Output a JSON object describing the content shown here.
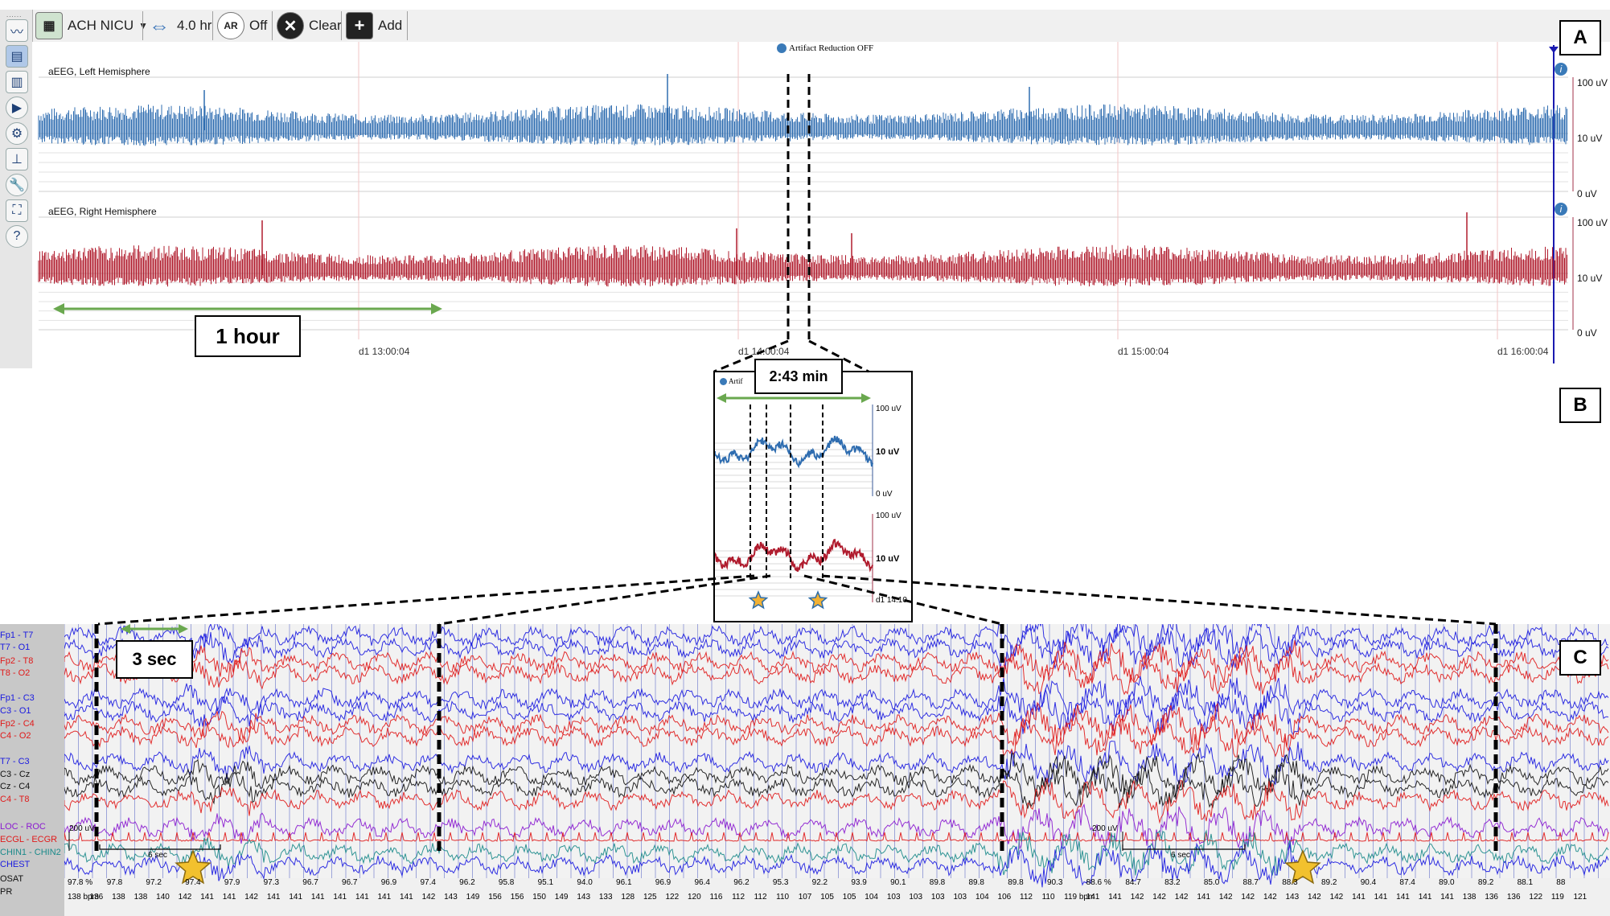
{
  "toolbar": {
    "montage_label": "ACH NICU",
    "timebase_label": "4.0 hr",
    "artifact_icon": "AR",
    "artifact_label": "Off",
    "clear_label": "Clear",
    "add_label": "Add"
  },
  "sidebar": {
    "icons": [
      "waveform-icon",
      "aeeg-trend-icon",
      "spectrum-icon",
      "play-icon",
      "gear-icon",
      "trend-icon",
      "wrench-icon",
      "fit-screen-icon",
      "help-icon"
    ]
  },
  "panel_a": {
    "letter": "A",
    "artifact_status": "Artifact Reduction OFF",
    "left_label": "aEEG, Left Hemisphere",
    "right_label": "aEEG, Right Hemisphere",
    "scale": [
      "100 uV",
      "10 uV",
      "0 uV"
    ],
    "time_labels": [
      "d1 13:00:04",
      "d1 14:00:04",
      "d1 15:00:04",
      "d1 16:00:04"
    ],
    "duration_label": "1 hour",
    "colors": {
      "left": "#2f6db0",
      "right": "#b01c2e"
    }
  },
  "panel_b": {
    "letter": "B",
    "duration_label": "2:43 min",
    "header_text": "Artif",
    "scale": [
      "100 uV",
      "10 uV",
      "0 uV",
      "100 uV",
      "10 uV",
      "0 uV"
    ],
    "time_label": "d1 14:10"
  },
  "panel_c": {
    "letter": "C",
    "duration_label": "3 sec",
    "channels": [
      {
        "name": "Fp1 - T7",
        "color": "#1a1ae0"
      },
      {
        "name": "T7 - O1",
        "color": "#1a1ae0"
      },
      {
        "name": "Fp2 - T8",
        "color": "#e01a1a"
      },
      {
        "name": "T8 - O2",
        "color": "#e01a1a"
      },
      {
        "name": "Fp1 - C3",
        "color": "#1a1ae0"
      },
      {
        "name": "C3 - O1",
        "color": "#1a1ae0"
      },
      {
        "name": "Fp2 - C4",
        "color": "#e01a1a"
      },
      {
        "name": "C4 - O2",
        "color": "#e01a1a"
      },
      {
        "name": "T7 - C3",
        "color": "#1a1ae0"
      },
      {
        "name": "C3 - Cz",
        "color": "#111111"
      },
      {
        "name": "Cz - C4",
        "color": "#111111"
      },
      {
        "name": "C4 - T8",
        "color": "#e01a1a"
      },
      {
        "name": "LOC - ROC",
        "color": "#8a1ad0"
      },
      {
        "name": "ECGL - ECGR",
        "color": "#e01a1a"
      },
      {
        "name": "CHIN1 - CHIN2",
        "color": "#1a8a8a"
      },
      {
        "name": "CHEST",
        "color": "#1a1ae0"
      },
      {
        "name": "OSAT",
        "color": "#111111"
      },
      {
        "name": "PR",
        "color": "#111111"
      }
    ],
    "scale_labels": [
      "200 uV",
      "200 uV"
    ],
    "sec_labels": [
      "6 sec",
      "6 sec"
    ],
    "osat_values": [
      "97.8 %",
      "97.8",
      "97.2",
      "97.4",
      "97.9",
      "97.3",
      "96.7",
      "96.7",
      "96.9",
      "97.4",
      "96.2",
      "95.8",
      "95.1",
      "94.0",
      "96.1",
      "96.9",
      "96.4",
      "96.2",
      "95.3",
      "92.2",
      "93.9",
      "90.1",
      "89.8",
      "89.8",
      "89.8",
      "90.3",
      "88.6 %",
      "84.7",
      "83.2",
      "85.0",
      "88.7",
      "88.3",
      "89.2",
      "90.4",
      "87.4",
      "89.0",
      "89.2",
      "88.1",
      "88"
    ],
    "pr_values": [
      "138 bpm",
      "136",
      "138",
      "138",
      "140",
      "142",
      "141",
      "141",
      "142",
      "141",
      "141",
      "141",
      "141",
      "141",
      "141",
      "141",
      "142",
      "143",
      "149",
      "156",
      "156",
      "150",
      "149",
      "143",
      "133",
      "128",
      "125",
      "122",
      "120",
      "116",
      "112",
      "112",
      "110",
      "107",
      "105",
      "105",
      "104",
      "103",
      "103",
      "103",
      "103",
      "104",
      "106",
      "112",
      "110",
      "119 bpm",
      "141",
      "141",
      "142",
      "142",
      "142",
      "141",
      "142",
      "142",
      "142",
      "143",
      "142",
      "142",
      "141",
      "141",
      "141",
      "141",
      "141",
      "138",
      "136",
      "136",
      "122",
      "119",
      "121"
    ]
  }
}
